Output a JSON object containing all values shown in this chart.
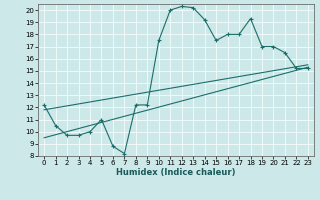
{
  "xlabel": "Humidex (Indice chaleur)",
  "xlim": [
    -0.5,
    23.5
  ],
  "ylim": [
    8,
    20.5
  ],
  "yticks": [
    8,
    9,
    10,
    11,
    12,
    13,
    14,
    15,
    16,
    17,
    18,
    19,
    20
  ],
  "xticks": [
    0,
    1,
    2,
    3,
    4,
    5,
    6,
    7,
    8,
    9,
    10,
    11,
    12,
    13,
    14,
    15,
    16,
    17,
    18,
    19,
    20,
    21,
    22,
    23
  ],
  "bg_color": "#cce8e8",
  "line_color": "#1a6e6a",
  "line1_x": [
    0,
    1,
    2,
    3,
    4,
    5,
    6,
    7,
    8,
    9,
    10,
    11,
    12,
    13,
    14,
    15,
    16,
    17,
    18,
    19,
    20,
    21,
    22,
    23
  ],
  "line1_y": [
    12.2,
    10.5,
    9.7,
    9.7,
    10.0,
    11.0,
    8.8,
    8.2,
    12.2,
    12.2,
    17.5,
    20.0,
    20.3,
    20.2,
    19.2,
    17.5,
    18.0,
    18.0,
    19.3,
    17.0,
    17.0,
    16.5,
    15.2,
    15.2
  ],
  "line2_x": [
    0,
    23
  ],
  "line2_y": [
    9.5,
    15.3
  ],
  "line3_x": [
    0,
    23
  ],
  "line3_y": [
    11.8,
    15.5
  ],
  "xlabel_fontsize": 6,
  "tick_fontsize": 5
}
